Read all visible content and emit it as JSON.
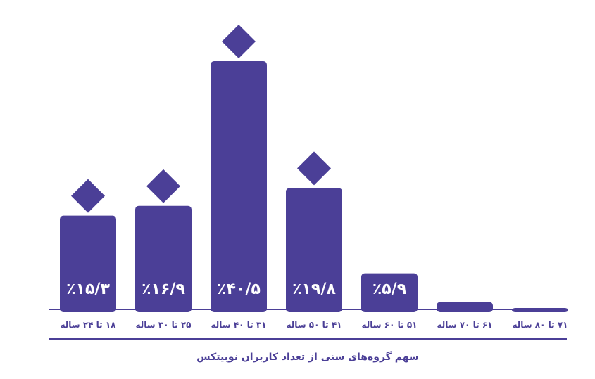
{
  "chart_data": {
    "type": "bar",
    "title": "سهم گروه‌های سنی از تعداد کاربران نوبیتکس",
    "categories": [
      "۱۸ تا ۲۴ ساله",
      "۲۵ تا ۳۰ ساله",
      "۳۱ تا ۴۰ ساله",
      "۴۱ تا ۵۰ ساله",
      "۵۱ تا ۶۰ ساله",
      "۶۱ تا ۷۰ ساله",
      "۷۱ تا ۸۰ ساله"
    ],
    "values": [
      15.3,
      16.9,
      40.5,
      19.8,
      5.9,
      1.2,
      0.2
    ],
    "value_labels": [
      "٪۱۵/۳",
      "٪۱۶/۹",
      "٪۴۰/۵",
      "٪۱۹/۸",
      "٪۵/۹",
      "",
      ""
    ],
    "markers": [
      true,
      true,
      true,
      true,
      false,
      false,
      false
    ],
    "ylim": [
      0,
      40.5
    ],
    "grid": false,
    "legend": "none",
    "colors": {
      "bar": "#4b3f97",
      "text": "#4b3f97",
      "label": "#ffffff"
    }
  }
}
